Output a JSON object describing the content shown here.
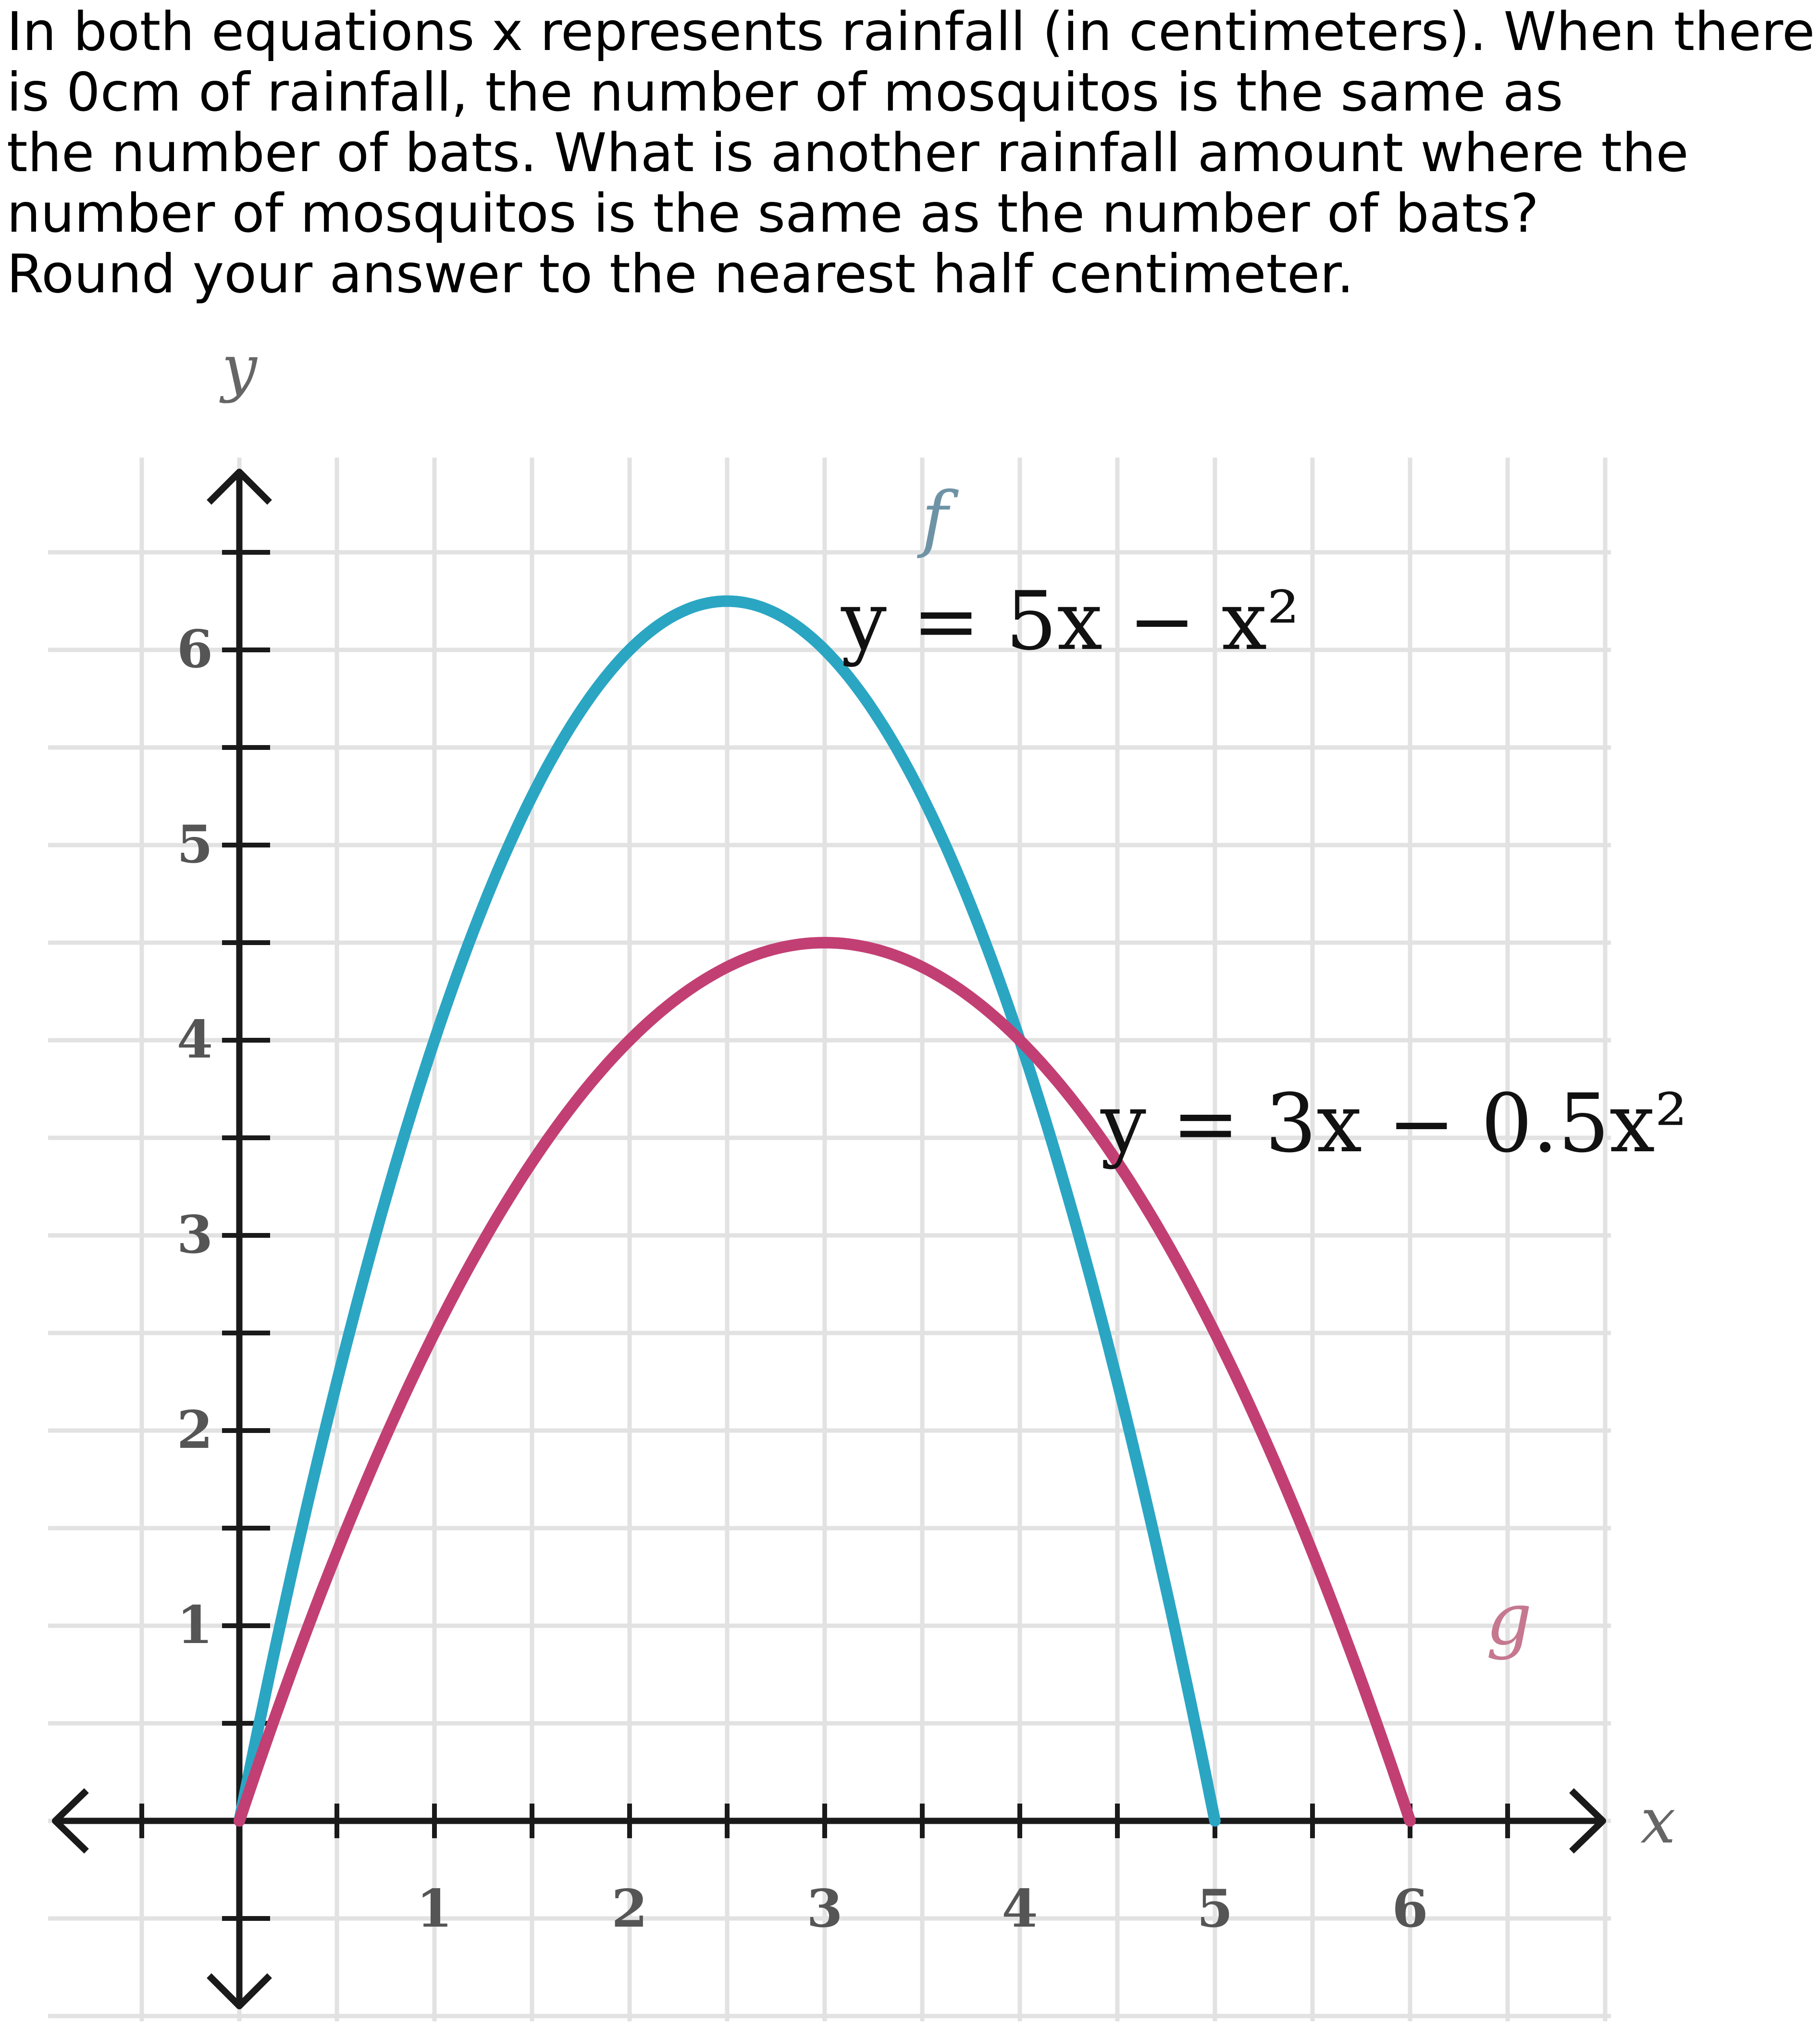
{
  "question": {
    "lines": [
      "In both equations x represents rainfall (in centimeters). When there",
      "is 0cm of rainfall, the number of mosquitos is the same as",
      "the number of bats. What is another rainfall amount where the",
      "number of mosquitos is the same as the number of bats?",
      "Round your answer to the nearest half centimeter."
    ]
  },
  "chart_data": {
    "type": "line",
    "xlabel": "x",
    "ylabel": "y",
    "xlim": [
      -1,
      7
    ],
    "ylim": [
      -1,
      7
    ],
    "x_ticks": [
      "1",
      "2",
      "3",
      "4",
      "5",
      "6"
    ],
    "y_ticks": [
      "1",
      "2",
      "3",
      "4",
      "5",
      "6"
    ],
    "grid": true,
    "series": [
      {
        "name": "f",
        "equation": "y = 5x − x²",
        "color": "#2aa6c3",
        "x": [
          0,
          0.5,
          1,
          1.5,
          2,
          2.5,
          3,
          3.5,
          4,
          4.5,
          5
        ],
        "y": [
          0,
          2.25,
          4,
          5.25,
          6,
          6.25,
          6,
          5.25,
          4,
          2.25,
          0
        ]
      },
      {
        "name": "g",
        "equation": "y = 3x − 0.5x²",
        "color": "#c23f74",
        "x": [
          0,
          0.5,
          1,
          1.5,
          2,
          2.5,
          3,
          3.5,
          4,
          4.5,
          5,
          5.5,
          6
        ],
        "y": [
          0,
          1.375,
          2.5,
          3.375,
          4,
          4.375,
          4.5,
          4.375,
          4,
          3.375,
          2.5,
          1.375,
          0
        ]
      }
    ]
  }
}
